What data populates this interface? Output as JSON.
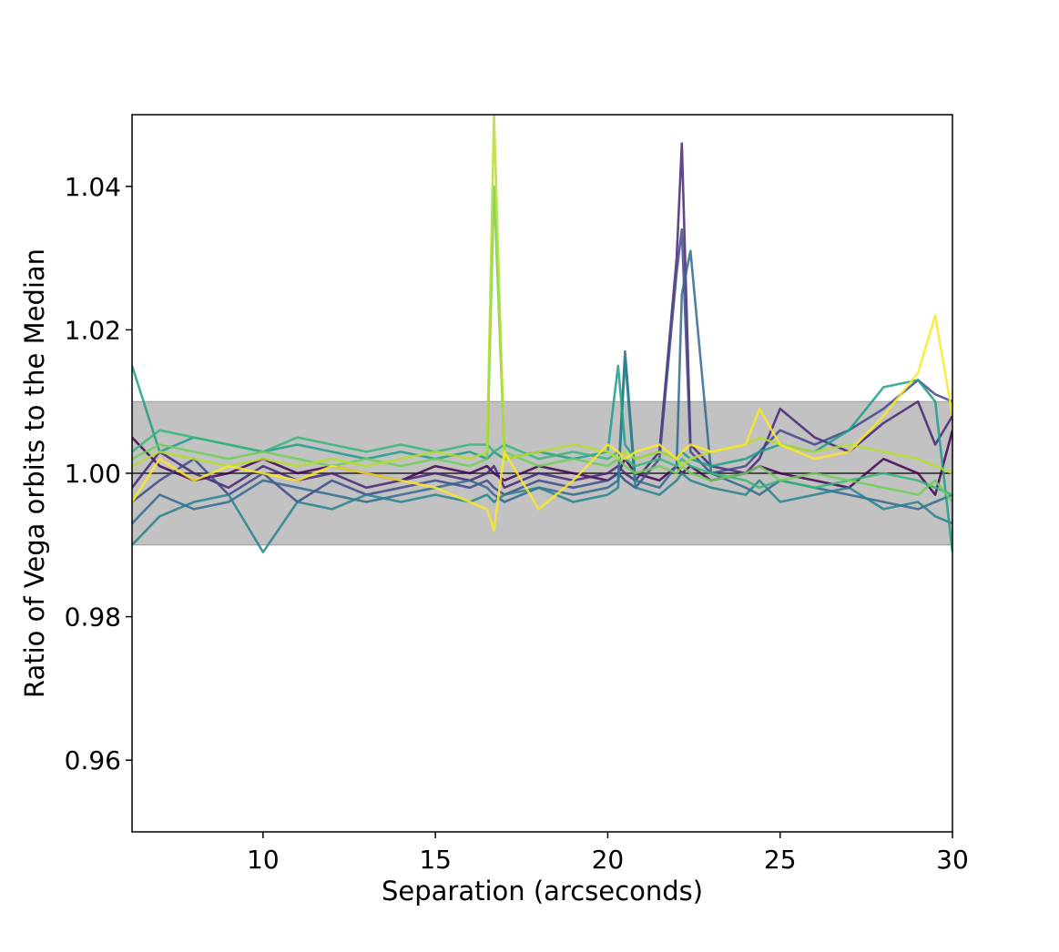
{
  "chart_data": {
    "type": "line",
    "title": "",
    "xlabel": "Separation (arcseconds)",
    "ylabel": "Ratio of Vega orbits to the Median",
    "xlim": [
      6.2,
      30
    ],
    "ylim": [
      0.95,
      1.05
    ],
    "xticks": [
      {
        "value": 10,
        "label": "10"
      },
      {
        "value": 15,
        "label": "15"
      },
      {
        "value": 20,
        "label": "20"
      },
      {
        "value": 25,
        "label": "25"
      },
      {
        "value": 30,
        "label": "30"
      }
    ],
    "yticks": [
      {
        "value": 0.96,
        "label": "0.96"
      },
      {
        "value": 0.98,
        "label": "0.98"
      },
      {
        "value": 1.0,
        "label": "1.00"
      },
      {
        "value": 1.02,
        "label": "1.02"
      },
      {
        "value": 1.04,
        "label": "1.04"
      }
    ],
    "band": {
      "y0": 0.99,
      "y1": 1.01,
      "color": "#bfbfbf"
    },
    "reference_line": {
      "y": 1.0,
      "color": "#222222"
    },
    "grid": false,
    "legend": "none",
    "x": [
      6.2,
      7,
      8,
      9,
      10,
      11,
      12,
      13,
      14,
      15,
      16,
      16.5,
      16.7,
      17,
      18,
      19,
      20,
      20.3,
      20.5,
      20.8,
      21.5,
      22.0,
      22.15,
      22.4,
      23,
      24,
      24.4,
      25,
      26,
      27,
      28,
      29,
      29.5,
      30
    ],
    "series": [
      {
        "color": "#440154",
        "values": [
          1.005,
          1.001,
          0.999,
          1.0,
          1.002,
          1.0,
          1.001,
          1.0,
          0.999,
          1.001,
          1.0,
          1.001,
          1.0,
          0.999,
          1.001,
          1.0,
          0.999,
          1.0,
          1.002,
          1.0,
          0.999,
          1.001,
          1.0,
          1.001,
          0.999,
          1.0,
          1.001,
          1.0,
          0.999,
          0.998,
          1.002,
          1.0,
          0.997,
          1.006
        ]
      },
      {
        "color": "#482475",
        "values": [
          0.998,
          1.003,
          1.0,
          0.998,
          1.001,
          0.999,
          1.0,
          0.998,
          0.999,
          1.0,
          0.999,
          1.0,
          1.001,
          0.998,
          1.0,
          0.999,
          1.0,
          1.001,
          1.0,
          0.999,
          1.003,
          1.03,
          1.046,
          1.004,
          1.001,
          1.0,
          1.002,
          1.009,
          1.005,
          1.003,
          1.007,
          1.01,
          1.004,
          1.008
        ]
      },
      {
        "color": "#3e4989",
        "values": [
          0.996,
          0.999,
          1.002,
          0.997,
          1.0,
          0.996,
          0.999,
          0.997,
          0.998,
          0.999,
          0.998,
          0.999,
          0.998,
          0.997,
          0.999,
          0.998,
          0.999,
          1.0,
          0.999,
          0.998,
          1.002,
          1.028,
          1.034,
          1.003,
          1.0,
          1.001,
          1.003,
          1.006,
          1.004,
          1.006,
          1.009,
          1.013,
          1.011,
          1.01
        ]
      },
      {
        "color": "#31688e",
        "values": [
          0.993,
          0.997,
          0.995,
          0.996,
          0.999,
          0.998,
          0.997,
          0.996,
          0.997,
          0.998,
          0.999,
          0.998,
          0.997,
          0.996,
          0.998,
          0.997,
          0.998,
          0.999,
          1.017,
          0.999,
          0.998,
          1.001,
          1.025,
          1.031,
          1.0,
          0.998,
          0.997,
          0.999,
          0.998,
          0.997,
          0.996,
          0.995,
          0.996,
          0.997
        ]
      },
      {
        "color": "#26828e",
        "values": [
          0.99,
          0.994,
          0.996,
          0.997,
          0.989,
          0.996,
          0.995,
          0.997,
          0.996,
          0.997,
          0.996,
          0.997,
          0.996,
          0.997,
          0.998,
          0.996,
          0.997,
          0.998,
          1.016,
          0.998,
          0.997,
          0.999,
          1.0,
          0.999,
          0.998,
          0.997,
          0.999,
          0.996,
          0.997,
          0.998,
          0.995,
          0.996,
          0.994,
          0.993
        ]
      },
      {
        "color": "#1f9e89",
        "values": [
          1.015,
          1.003,
          1.005,
          1.004,
          1.003,
          1.004,
          1.003,
          1.002,
          1.003,
          1.002,
          1.003,
          1.002,
          1.003,
          1.002,
          1.003,
          1.002,
          1.003,
          1.015,
          1.004,
          1.002,
          1.003,
          1.002,
          1.003,
          1.002,
          1.001,
          1.002,
          1.003,
          1.004,
          1.003,
          1.006,
          1.012,
          1.013,
          1.01,
          0.989
        ]
      },
      {
        "color": "#35b779",
        "values": [
          1.003,
          1.006,
          1.005,
          1.004,
          1.003,
          1.005,
          1.004,
          1.003,
          1.004,
          1.003,
          1.004,
          1.004,
          1.003,
          1.004,
          1.002,
          1.003,
          1.002,
          1.003,
          1.002,
          1.001,
          1.002,
          1.001,
          1.002,
          1.001,
          1.0,
          0.999,
          0.998,
          0.999,
          0.998,
          0.999,
          1.0,
          0.999,
          0.998,
          0.997
        ]
      },
      {
        "color": "#6ece58",
        "values": [
          1.002,
          1.004,
          1.003,
          1.002,
          1.003,
          1.002,
          1.001,
          1.002,
          1.001,
          1.002,
          1.001,
          1.002,
          1.04,
          1.003,
          1.001,
          1.002,
          1.001,
          1.002,
          1.001,
          1.0,
          1.001,
          1.0,
          1.001,
          1.0,
          0.999,
          1.0,
          1.001,
          0.999,
          1.0,
          0.999,
          0.998,
          0.997,
          0.999,
          0.996
        ]
      },
      {
        "color": "#b5de2b",
        "values": [
          1.001,
          1.003,
          1.002,
          1.001,
          1.002,
          1.001,
          1.002,
          1.001,
          1.002,
          1.003,
          1.002,
          1.003,
          1.05,
          1.002,
          1.003,
          1.004,
          1.003,
          1.002,
          1.003,
          1.002,
          1.003,
          1.002,
          1.001,
          1.002,
          1.003,
          1.004,
          1.005,
          1.004,
          1.003,
          1.004,
          1.003,
          1.002,
          1.001,
          1.0
        ]
      },
      {
        "color": "#fde725",
        "values": [
          0.996,
          1.002,
          0.999,
          1.001,
          1.0,
          0.999,
          1.001,
          1.0,
          0.999,
          0.998,
          0.996,
          0.995,
          0.992,
          1.003,
          0.995,
          0.999,
          1.004,
          1.003,
          1.002,
          1.003,
          1.004,
          1.002,
          1.003,
          1.004,
          1.003,
          1.004,
          1.009,
          1.004,
          1.002,
          1.003,
          1.008,
          1.014,
          1.022,
          1.008
        ]
      }
    ]
  }
}
